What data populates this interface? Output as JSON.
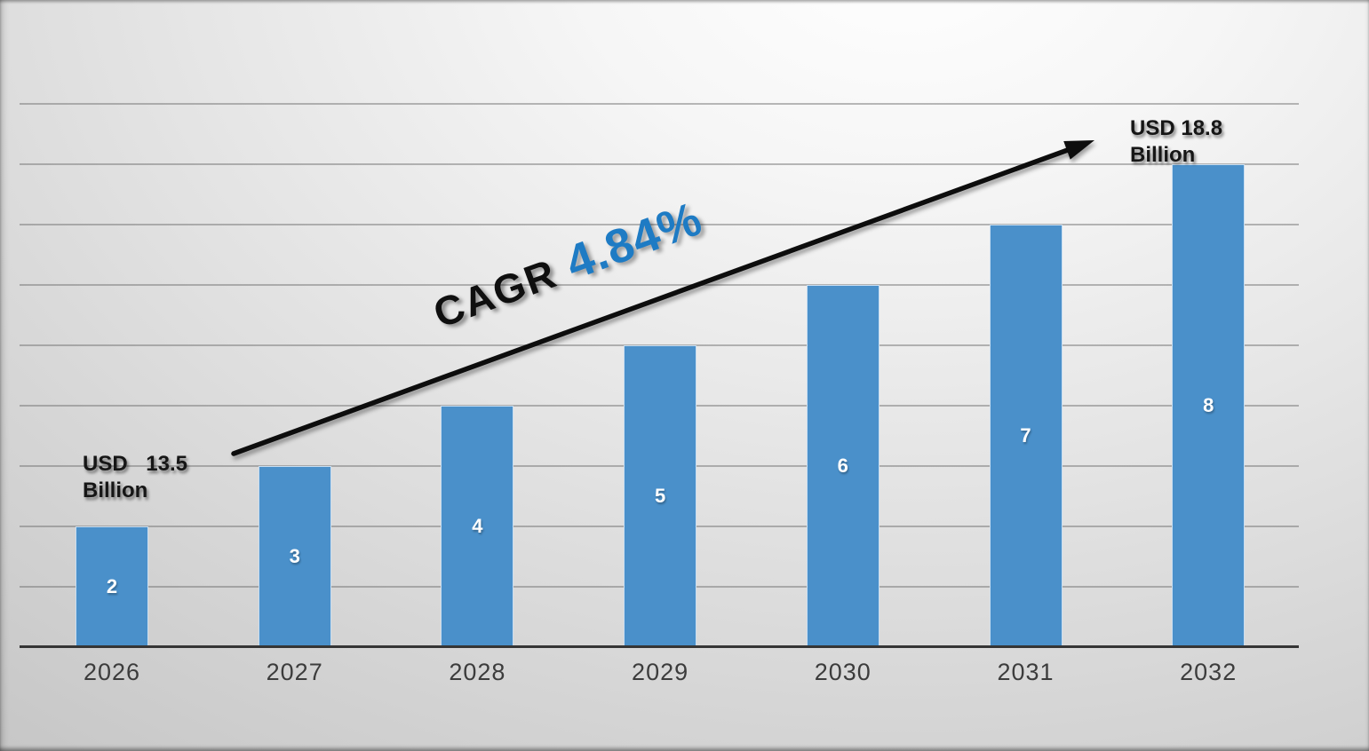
{
  "chart_data": {
    "type": "bar",
    "title": "",
    "xlabel": "",
    "ylabel": "",
    "categories": [
      "2026",
      "2027",
      "2028",
      "2029",
      "2030",
      "2031",
      "2032"
    ],
    "values": [
      2,
      3,
      4,
      5,
      6,
      7,
      8
    ],
    "bar_labels": [
      "2",
      "3",
      "4",
      "5",
      "6",
      "7",
      "8"
    ],
    "ylim": [
      0,
      9
    ],
    "gridline_interval": 1,
    "grid": true,
    "legend_position": "none",
    "bar_color": "#4A90CA",
    "bar_border_color": "#C9DEF1",
    "bar_label_color": "#FFFFFF",
    "gridline_color": "#6F6F6F",
    "axis_line_color": "#353535",
    "tick_label_color": "#3C3C3C",
    "annotation_text_color": "#161616",
    "annotations": {
      "start": {
        "word1": "USD",
        "word2": "13.5",
        "word3": "Billion"
      },
      "end": {
        "line1": "USD 18.8",
        "line2": "Billion"
      },
      "trend": {
        "label": "CAGR",
        "value": "4.84%",
        "label_color": "#0F0F0F",
        "value_color": "#1E7BC4",
        "arrow_color": "#0A0A0A"
      }
    }
  }
}
